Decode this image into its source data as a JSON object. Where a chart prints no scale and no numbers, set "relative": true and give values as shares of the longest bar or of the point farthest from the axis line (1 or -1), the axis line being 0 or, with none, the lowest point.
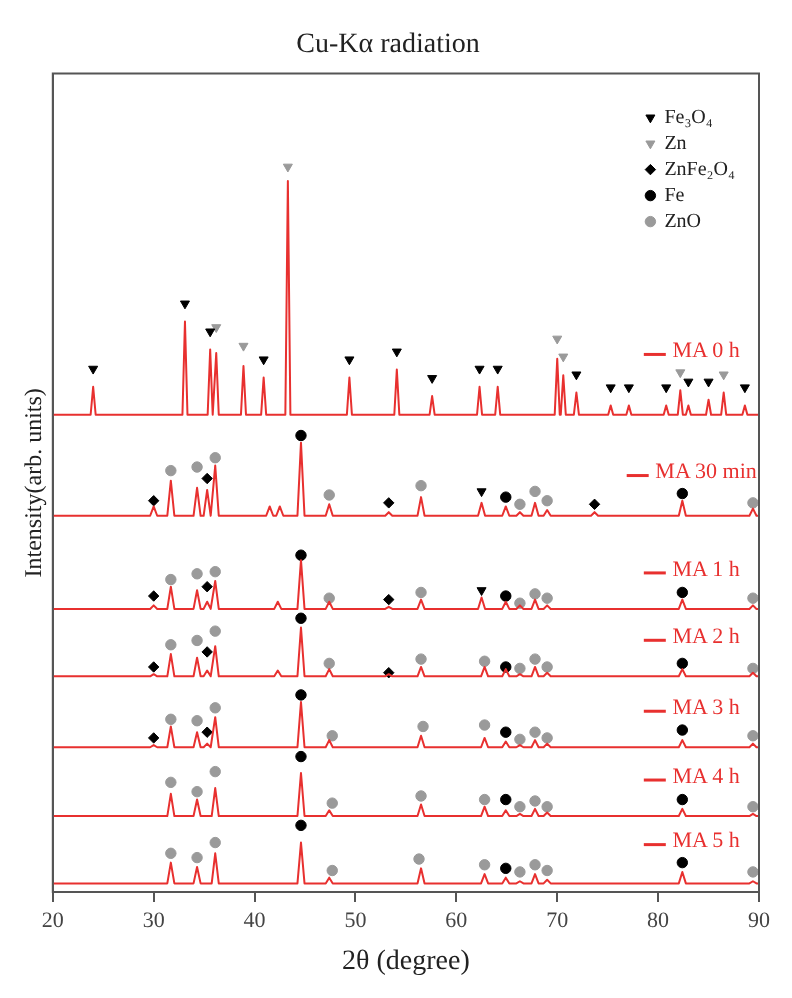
{
  "chart_data": {
    "type": "line",
    "title": "Cu-Kα radiation",
    "xlabel": "2θ (degree)",
    "ylabel": "Intensity(arb. units)",
    "relative": true,
    "xlim": [
      20,
      90
    ],
    "xticks": [
      20,
      30,
      40,
      50,
      60,
      70,
      80,
      90
    ],
    "grid": false,
    "legend": "top right",
    "series": [
      {
        "name": "MA 0 h",
        "color": "#e8302f",
        "x": [
          20,
          23.75,
          24,
          24.25,
          32.85,
          33.1,
          33.35,
          35.35,
          35.6,
          35.85,
          35.95,
          36.2,
          36.45,
          38.65,
          38.9,
          39.15,
          40.65,
          40.9,
          41.15,
          43.05,
          43.3,
          43.55,
          49.15,
          49.4,
          49.65,
          53.85,
          54.1,
          54.35,
          57.35,
          57.6,
          57.85,
          62.05,
          62.3,
          62.55,
          63.85,
          64.1,
          64.35,
          69.75,
          70,
          70.25,
          70.35,
          70.6,
          70.85,
          71.65,
          71.9,
          72.15,
          75.05,
          75.3,
          75.55,
          76.85,
          77.1,
          77.35,
          80.55,
          80.8,
          81.05,
          81.95,
          82.2,
          82.45,
          82.75,
          83,
          83.25,
          84.75,
          85,
          85.25,
          86.25,
          86.5,
          86.75,
          88.35,
          88.6,
          88.85,
          90
        ],
        "values": [
          0.654,
          0.654,
          0.693,
          0.654,
          0.654,
          0.784,
          0.654,
          0.654,
          0.745,
          0.654,
          0.654,
          0.74,
          0.654,
          0.654,
          0.722,
          0.654,
          0.654,
          0.706,
          0.654,
          0.654,
          0.98,
          0.654,
          0.654,
          0.706,
          0.654,
          0.654,
          0.717,
          0.654,
          0.654,
          0.68,
          0.654,
          0.654,
          0.693,
          0.654,
          0.654,
          0.693,
          0.654,
          0.654,
          0.732,
          0.654,
          0.654,
          0.709,
          0.654,
          0.654,
          0.685,
          0.654,
          0.654,
          0.667,
          0.654,
          0.654,
          0.667,
          0.654,
          0.654,
          0.667,
          0.654,
          0.654,
          0.688,
          0.654,
          0.654,
          0.667,
          0.654,
          0.654,
          0.675,
          0.654,
          0.654,
          0.685,
          0.654,
          0.654,
          0.667,
          0.654,
          0.654
        ]
      },
      {
        "name": "MA 30 min",
        "color": "#e8302f",
        "x": [
          20,
          29.65,
          30,
          30.35,
          31.35,
          31.7,
          32.05,
          33.95,
          34.3,
          34.65,
          34.95,
          35.3,
          35.65,
          35.75,
          36.1,
          36.45,
          41.15,
          41.5,
          41.85,
          42.15,
          42.5,
          42.85,
          44.25,
          44.6,
          44.95,
          47.05,
          47.4,
          47.75,
          52.95,
          53.3,
          53.65,
          56.15,
          56.5,
          56.85,
          62.15,
          62.5,
          62.85,
          64.55,
          64.9,
          65.25,
          65.95,
          66.3,
          66.65,
          67.45,
          67.8,
          68.15,
          68.65,
          69,
          69.35,
          73.35,
          73.7,
          74.05,
          82.05,
          82.4,
          82.75,
          89.05,
          89.4,
          89.75,
          90
        ],
        "values": [
          0.513,
          0.513,
          0.526,
          0.513,
          0.513,
          0.562,
          0.513,
          0.513,
          0.552,
          0.513,
          0.513,
          0.549,
          0.513,
          0.513,
          0.583,
          0.513,
          0.513,
          0.526,
          0.513,
          0.513,
          0.526,
          0.513,
          0.513,
          0.615,
          0.513,
          0.513,
          0.529,
          0.513,
          0.513,
          0.518,
          0.513,
          0.513,
          0.539,
          0.513,
          0.513,
          0.531,
          0.513,
          0.513,
          0.526,
          0.513,
          0.513,
          0.518,
          0.513,
          0.513,
          0.531,
          0.513,
          0.513,
          0.521,
          0.513,
          0.513,
          0.518,
          0.513,
          0.513,
          0.534,
          0.513,
          0.513,
          0.523,
          0.513,
          0.513
        ]
      },
      {
        "name": "MA 1 h",
        "color": "#e8302f",
        "x": [
          20,
          29.65,
          30,
          30.35,
          31.35,
          31.7,
          32.05,
          33.95,
          34.3,
          34.65,
          34.95,
          35.3,
          35.65,
          35.75,
          36.1,
          36.45,
          41.95,
          42.3,
          42.65,
          44.25,
          44.6,
          44.95,
          47.05,
          47.4,
          47.75,
          52.95,
          53.3,
          53.65,
          56.15,
          56.5,
          56.85,
          62.15,
          62.5,
          62.85,
          64.55,
          64.9,
          65.25,
          65.95,
          66.3,
          66.65,
          67.45,
          67.8,
          68.15,
          68.65,
          69,
          69.35,
          82.05,
          82.4,
          82.75,
          89.05,
          89.4,
          89.75,
          90
        ],
        "values": [
          0.383,
          0.383,
          0.388,
          0.383,
          0.383,
          0.414,
          0.383,
          0.383,
          0.409,
          0.383,
          0.383,
          0.393,
          0.383,
          0.383,
          0.422,
          0.383,
          0.383,
          0.393,
          0.383,
          0.383,
          0.451,
          0.383,
          0.383,
          0.393,
          0.383,
          0.383,
          0.386,
          0.383,
          0.383,
          0.396,
          0.383,
          0.383,
          0.399,
          0.383,
          0.383,
          0.393,
          0.383,
          0.383,
          0.388,
          0.383,
          0.383,
          0.396,
          0.383,
          0.383,
          0.388,
          0.383,
          0.383,
          0.396,
          0.383,
          0.383,
          0.388,
          0.383,
          0.383
        ]
      },
      {
        "name": "MA 2 h",
        "color": "#e8302f",
        "x": [
          20,
          29.65,
          30,
          30.35,
          31.35,
          31.7,
          32.05,
          33.95,
          34.3,
          34.65,
          34.95,
          35.3,
          35.65,
          35.75,
          36.1,
          36.45,
          41.95,
          42.3,
          42.65,
          44.25,
          44.6,
          44.95,
          47.05,
          47.4,
          47.75,
          52.95,
          53.3,
          53.65,
          56.15,
          56.5,
          56.85,
          62.45,
          62.8,
          63.15,
          64.55,
          64.9,
          65.25,
          65.95,
          66.3,
          66.65,
          67.45,
          67.8,
          68.15,
          68.65,
          69,
          69.35,
          82.05,
          82.4,
          82.75,
          89.05,
          89.4,
          89.75,
          90
        ],
        "values": [
          0.289,
          0.289,
          0.292,
          0.289,
          0.289,
          0.32,
          0.289,
          0.289,
          0.315,
          0.289,
          0.289,
          0.297,
          0.289,
          0.289,
          0.331,
          0.289,
          0.289,
          0.297,
          0.289,
          0.289,
          0.357,
          0.289,
          0.289,
          0.299,
          0.289,
          0.289,
          0.292,
          0.289,
          0.289,
          0.302,
          0.289,
          0.289,
          0.302,
          0.289,
          0.289,
          0.299,
          0.289,
          0.289,
          0.292,
          0.289,
          0.289,
          0.302,
          0.289,
          0.289,
          0.294,
          0.289,
          0.289,
          0.299,
          0.289,
          0.289,
          0.294,
          0.289,
          0.289
        ]
      },
      {
        "name": "MA 3 h",
        "color": "#e8302f",
        "x": [
          20,
          29.65,
          30,
          30.35,
          31.35,
          31.7,
          32.05,
          33.95,
          34.3,
          34.65,
          34.95,
          35.3,
          35.65,
          35.75,
          36.1,
          36.45,
          44.25,
          44.6,
          44.95,
          47.05,
          47.4,
          47.75,
          56.15,
          56.5,
          56.85,
          62.45,
          62.8,
          63.15,
          64.55,
          64.9,
          65.25,
          65.95,
          66.3,
          66.65,
          67.45,
          67.8,
          68.15,
          68.65,
          69,
          69.35,
          82.05,
          82.4,
          82.75,
          89.05,
          89.4,
          89.75,
          90
        ],
        "values": [
          0.19,
          0.19,
          0.193,
          0.19,
          0.19,
          0.219,
          0.19,
          0.19,
          0.211,
          0.19,
          0.19,
          0.195,
          0.19,
          0.19,
          0.232,
          0.19,
          0.19,
          0.253,
          0.19,
          0.19,
          0.2,
          0.19,
          0.19,
          0.206,
          0.19,
          0.19,
          0.203,
          0.19,
          0.19,
          0.198,
          0.19,
          0.19,
          0.193,
          0.19,
          0.19,
          0.2,
          0.19,
          0.19,
          0.195,
          0.19,
          0.19,
          0.2,
          0.19,
          0.19,
          0.195,
          0.19,
          0.19
        ]
      },
      {
        "name": "MA 4 h",
        "color": "#e8302f",
        "x": [
          20,
          31.35,
          31.7,
          32.05,
          33.95,
          34.3,
          34.65,
          35.75,
          36.1,
          36.45,
          44.25,
          44.6,
          44.95,
          47.05,
          47.4,
          47.75,
          56.15,
          56.5,
          56.85,
          62.45,
          62.8,
          63.15,
          64.55,
          64.9,
          65.25,
          65.95,
          66.3,
          66.65,
          67.45,
          67.8,
          68.15,
          68.65,
          69,
          69.35,
          82.05,
          82.4,
          82.75,
          89.05,
          89.4,
          89.75,
          90
        ],
        "values": [
          0.094,
          0.094,
          0.125,
          0.094,
          0.094,
          0.117,
          0.094,
          0.094,
          0.133,
          0.094,
          0.094,
          0.154,
          0.094,
          0.094,
          0.102,
          0.094,
          0.094,
          0.11,
          0.094,
          0.094,
          0.107,
          0.094,
          0.094,
          0.102,
          0.094,
          0.094,
          0.097,
          0.094,
          0.094,
          0.104,
          0.094,
          0.094,
          0.099,
          0.094,
          0.094,
          0.104,
          0.094,
          0.094,
          0.097,
          0.094,
          0.094
        ]
      },
      {
        "name": "MA 5 h",
        "color": "#e8302f",
        "x": [
          20,
          31.35,
          31.7,
          32.05,
          33.95,
          34.3,
          34.65,
          35.75,
          36.1,
          36.45,
          44.25,
          44.6,
          44.95,
          47.05,
          47.4,
          47.75,
          56.15,
          56.5,
          56.85,
          62.45,
          62.8,
          63.15,
          64.55,
          64.9,
          65.25,
          65.95,
          66.3,
          66.65,
          67.45,
          67.8,
          68.15,
          68.65,
          69,
          69.35,
          82.05,
          82.4,
          82.75,
          89.05,
          89.4,
          89.75,
          90
        ],
        "values": [
          0,
          0,
          0.029,
          0,
          0,
          0.023,
          0,
          0,
          0.042,
          0,
          0,
          0.057,
          0,
          0,
          0.008,
          0,
          0,
          0.021,
          0,
          0,
          0.013,
          0,
          0,
          0.008,
          0,
          0,
          0.003,
          0,
          0,
          0.013,
          0,
          0,
          0.005,
          0,
          0,
          0.016,
          0,
          0,
          0.003,
          0,
          0
        ]
      },
      {
        "name": "Fe₃O₄",
        "type": "scatter",
        "marker": "triangle",
        "color": "#000000",
        "x": [
          24,
          33.1,
          35.6,
          40.9,
          49.4,
          54.1,
          57.6,
          62.3,
          64.1,
          71.9,
          75.3,
          77.1,
          80.8,
          83,
          85,
          88.6,
          62.5,
          62.5
        ],
        "values": [
          0.718,
          0.809,
          0.77,
          0.731,
          0.731,
          0.742,
          0.705,
          0.718,
          0.718,
          0.71,
          0.692,
          0.692,
          0.692,
          0.7,
          0.7,
          0.692,
          0.547,
          0.409
        ]
      },
      {
        "name": "Zn",
        "type": "scatter",
        "marker": "triangle",
        "color": "#9a9a9a",
        "x": [
          36.2,
          38.9,
          43.3,
          70,
          70.6,
          82.2,
          86.5
        ],
        "values": [
          0.776,
          0.75,
          1,
          0.76,
          0.735,
          0.713,
          0.71
        ]
      },
      {
        "name": "ZnFe₂O₄",
        "type": "scatter",
        "marker": "diamond",
        "color": "#000000",
        "x": [
          30,
          35.3,
          53.3,
          73.7,
          30,
          35.3,
          53.3,
          30,
          35.3,
          53.3,
          30,
          35.3
        ],
        "values": [
          0.534,
          0.565,
          0.531,
          0.529,
          0.401,
          0.414,
          0.396,
          0.302,
          0.323,
          0.294,
          0.203,
          0.211
        ]
      },
      {
        "name": "Fe",
        "type": "scatter",
        "marker": "circle",
        "color": "#000000",
        "x": [
          44.6,
          64.9,
          82.4,
          44.6,
          64.9,
          82.4,
          44.6,
          64.9,
          82.4,
          44.6,
          64.9,
          82.4,
          44.6,
          64.9,
          82.4,
          44.6,
          64.9,
          82.4
        ],
        "values": [
          0.625,
          0.539,
          0.544,
          0.458,
          0.401,
          0.406,
          0.37,
          0.302,
          0.307,
          0.263,
          0.211,
          0.214,
          0.177,
          0.117,
          0.117,
          0.081,
          0.021,
          0.029
        ]
      },
      {
        "name": "ZnO",
        "type": "scatter",
        "marker": "circle",
        "color": "#9a9a9a",
        "x": [
          31.7,
          34.3,
          36.1,
          47.4,
          56.5,
          66.3,
          67.8,
          69,
          89.4,
          31.7,
          34.3,
          36.1,
          47.4,
          56.5,
          66.3,
          67.8,
          69,
          89.4,
          31.7,
          34.3,
          36.1,
          47.4,
          56.5,
          62.8,
          66.3,
          67.8,
          69,
          89.4,
          31.7,
          34.3,
          36.1,
          47.7,
          56.7,
          62.8,
          66.3,
          67.8,
          69,
          89.4,
          31.7,
          34.3,
          36.1,
          47.7,
          56.5,
          62.8,
          66.3,
          67.8,
          69,
          89.4,
          31.7,
          34.3,
          36.1,
          47.7,
          56.3,
          62.8,
          66.3,
          67.8,
          69,
          89.4
        ],
        "values": [
          0.576,
          0.581,
          0.594,
          0.542,
          0.555,
          0.529,
          0.547,
          0.534,
          0.531,
          0.424,
          0.432,
          0.435,
          0.398,
          0.406,
          0.391,
          0.404,
          0.398,
          0.398,
          0.333,
          0.339,
          0.352,
          0.307,
          0.313,
          0.31,
          0.3,
          0.313,
          0.302,
          0.3,
          0.229,
          0.227,
          0.245,
          0.206,
          0.219,
          0.221,
          0.201,
          0.211,
          0.203,
          0.206,
          0.141,
          0.128,
          0.156,
          0.112,
          0.122,
          0.117,
          0.107,
          0.115,
          0.107,
          0.107,
          0.042,
          0.036,
          0.057,
          0.018,
          0.034,
          0.026,
          0.016,
          0.026,
          0.018,
          0.016
        ]
      }
    ]
  }
}
